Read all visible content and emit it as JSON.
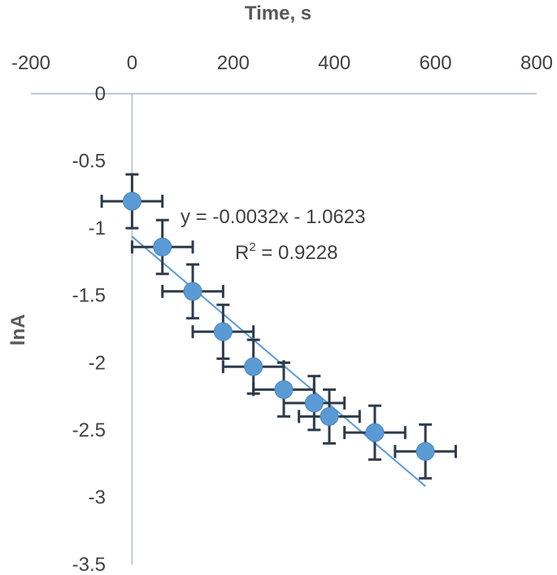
{
  "chart_data": {
    "type": "scatter",
    "title": "",
    "xlabel": "Time, s",
    "ylabel": "lnA",
    "xlim": [
      -200,
      800
    ],
    "ylim": [
      -3.5,
      0
    ],
    "x_ticks": [
      -200,
      0,
      200,
      400,
      600,
      800
    ],
    "y_ticks": [
      0,
      -0.5,
      -1,
      -1.5,
      -2,
      -2.5,
      -3,
      -3.5
    ],
    "x_tick_labels": [
      "-200",
      "0",
      "200",
      "400",
      "600",
      "800"
    ],
    "y_tick_labels": [
      "0",
      "-0.5",
      "-1",
      "-1.5",
      "-2",
      "-2.5",
      "-3",
      "-3.5"
    ],
    "x_axis_position": "top",
    "grid": false,
    "legend": "none",
    "series": [
      {
        "color": "#5b9bd5",
        "points": [
          {
            "x": 0,
            "y": -0.8
          },
          {
            "x": 60,
            "y": -1.14
          },
          {
            "x": 120,
            "y": -1.47
          },
          {
            "x": 180,
            "y": -1.77
          },
          {
            "x": 240,
            "y": -2.03
          },
          {
            "x": 300,
            "y": -2.2
          },
          {
            "x": 360,
            "y": -2.3
          },
          {
            "x": 390,
            "y": -2.4
          },
          {
            "x": 480,
            "y": -2.52
          },
          {
            "x": 580,
            "y": -2.66
          }
        ],
        "x_error": 60,
        "y_error": 0.2
      }
    ],
    "trendline": {
      "type": "linear",
      "slope": -0.0032,
      "intercept": -1.0623,
      "x_range": [
        0,
        580
      ],
      "color": "#5b9bd5",
      "equation": "y = -0.0032x - 1.0623",
      "r_squared_prefix": "R",
      "r_squared_sup": "2",
      "r_squared_value": " = 0.9228"
    }
  }
}
